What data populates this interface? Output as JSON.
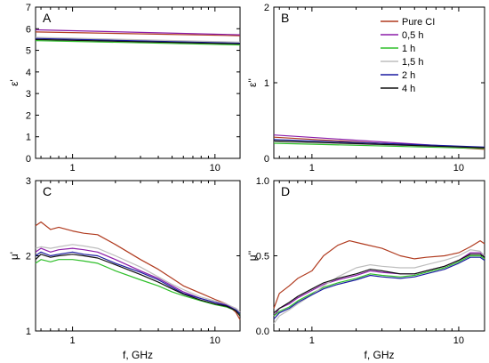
{
  "chart_data": [
    {
      "panel": "A",
      "type": "line",
      "xscale": "log",
      "xlim": [
        0.55,
        15
      ],
      "ylim": [
        0,
        7
      ],
      "yticks": [
        0,
        1,
        2,
        3,
        4,
        5,
        6,
        7
      ],
      "xticks": [
        {
          "v": 1,
          "label": "1"
        },
        {
          "v": 10,
          "label": "10"
        }
      ],
      "xlabel": "",
      "ylabel": "ε'",
      "series": [
        {
          "name": "Pure CI",
          "color": "#b03a1e",
          "x": [
            0.55,
            15
          ],
          "y": [
            5.85,
            5.68
          ]
        },
        {
          "name": "0,5 h",
          "color": "#8b1ca8",
          "x": [
            0.55,
            15
          ],
          "y": [
            5.95,
            5.72
          ]
        },
        {
          "name": "1 h",
          "color": "#2fbf2a",
          "x": [
            0.55,
            15
          ],
          "y": [
            5.45,
            5.25
          ]
        },
        {
          "name": "1,5 h",
          "color": "#bdbdbd",
          "x": [
            0.55,
            15
          ],
          "y": [
            5.6,
            5.38
          ]
        },
        {
          "name": "2 h",
          "color": "#1a1aa0",
          "x": [
            0.55,
            15
          ],
          "y": [
            5.55,
            5.33
          ]
        },
        {
          "name": "4 h",
          "color": "#101010",
          "x": [
            0.55,
            15
          ],
          "y": [
            5.5,
            5.3
          ]
        }
      ]
    },
    {
      "panel": "B",
      "type": "line",
      "xscale": "log",
      "xlim": [
        0.55,
        15
      ],
      "ylim": [
        0,
        2
      ],
      "yticks": [
        0,
        1,
        2
      ],
      "xticks": [
        {
          "v": 1,
          "label": "1"
        },
        {
          "v": 10,
          "label": "10"
        }
      ],
      "xlabel": "",
      "ylabel": "ε''",
      "series": [
        {
          "name": "Pure CI",
          "color": "#b03a1e",
          "x": [
            0.55,
            15
          ],
          "y": [
            0.28,
            0.12
          ]
        },
        {
          "name": "0,5 h",
          "color": "#8b1ca8",
          "x": [
            0.55,
            15
          ],
          "y": [
            0.31,
            0.13
          ]
        },
        {
          "name": "1 h",
          "color": "#2fbf2a",
          "x": [
            0.55,
            15
          ],
          "y": [
            0.2,
            0.13
          ]
        },
        {
          "name": "1,5 h",
          "color": "#bdbdbd",
          "x": [
            0.55,
            15
          ],
          "y": [
            0.22,
            0.14
          ]
        },
        {
          "name": "2 h",
          "color": "#1a1aa0",
          "x": [
            0.55,
            15
          ],
          "y": [
            0.25,
            0.15
          ]
        },
        {
          "name": "4 h",
          "color": "#101010",
          "x": [
            0.55,
            15
          ],
          "y": [
            0.23,
            0.14
          ]
        }
      ]
    },
    {
      "panel": "C",
      "type": "line",
      "xscale": "log",
      "xlim": [
        0.55,
        15
      ],
      "ylim": [
        1,
        3
      ],
      "yticks": [
        1,
        2,
        3
      ],
      "xticks": [
        {
          "v": 1,
          "label": "1"
        },
        {
          "v": 10,
          "label": "10"
        }
      ],
      "xlabel": "f, GHz",
      "ylabel": "μ'",
      "series": [
        {
          "name": "Pure CI",
          "color": "#b03a1e",
          "x": [
            0.55,
            0.6,
            0.7,
            0.8,
            1,
            1.2,
            1.5,
            2,
            3,
            4,
            5,
            6,
            8,
            10,
            12,
            14,
            15
          ],
          "y": [
            2.4,
            2.45,
            2.35,
            2.38,
            2.33,
            2.3,
            2.28,
            2.15,
            1.95,
            1.82,
            1.7,
            1.6,
            1.5,
            1.42,
            1.36,
            1.25,
            1.15
          ]
        },
        {
          "name": "0,5 h",
          "color": "#8b1ca8",
          "x": [
            0.55,
            0.6,
            0.7,
            0.8,
            1,
            1.2,
            1.5,
            2,
            3,
            4,
            5,
            6,
            8,
            10,
            12,
            14,
            15
          ],
          "y": [
            2.05,
            2.1,
            2.05,
            2.08,
            2.1,
            2.08,
            2.05,
            1.95,
            1.8,
            1.7,
            1.6,
            1.52,
            1.43,
            1.38,
            1.35,
            1.3,
            1.25
          ]
        },
        {
          "name": "1 h",
          "color": "#2fbf2a",
          "x": [
            0.55,
            0.6,
            0.7,
            0.8,
            1,
            1.2,
            1.5,
            2,
            3,
            4,
            5,
            6,
            8,
            10,
            12,
            14,
            15
          ],
          "y": [
            1.9,
            1.95,
            1.92,
            1.95,
            1.95,
            1.93,
            1.9,
            1.8,
            1.68,
            1.6,
            1.52,
            1.47,
            1.4,
            1.35,
            1.32,
            1.27,
            1.22
          ]
        },
        {
          "name": "1,5 h",
          "color": "#bdbdbd",
          "x": [
            0.55,
            0.6,
            0.7,
            0.8,
            1,
            1.2,
            1.5,
            2,
            3,
            4,
            5,
            6,
            8,
            10,
            12,
            14,
            15
          ],
          "y": [
            2.1,
            2.12,
            2.1,
            2.12,
            2.15,
            2.13,
            2.1,
            2.0,
            1.85,
            1.72,
            1.62,
            1.55,
            1.45,
            1.4,
            1.36,
            1.3,
            1.25
          ]
        },
        {
          "name": "2 h",
          "color": "#1a1aa0",
          "x": [
            0.55,
            0.6,
            0.7,
            0.8,
            1,
            1.2,
            1.5,
            2,
            3,
            4,
            5,
            6,
            8,
            10,
            12,
            14,
            15
          ],
          "y": [
            2.0,
            2.05,
            2.0,
            2.02,
            2.05,
            2.02,
            2.0,
            1.9,
            1.78,
            1.68,
            1.58,
            1.5,
            1.43,
            1.38,
            1.34,
            1.28,
            1.23
          ]
        },
        {
          "name": "4 h",
          "color": "#101010",
          "x": [
            0.55,
            0.6,
            0.7,
            0.8,
            1,
            1.2,
            1.5,
            2,
            3,
            4,
            5,
            6,
            8,
            10,
            12,
            14,
            15
          ],
          "y": [
            1.95,
            2.02,
            1.98,
            2.0,
            2.02,
            2.0,
            1.97,
            1.88,
            1.75,
            1.65,
            1.56,
            1.49,
            1.41,
            1.36,
            1.33,
            1.27,
            1.2
          ]
        }
      ]
    },
    {
      "panel": "D",
      "type": "line",
      "xscale": "log",
      "xlim": [
        0.55,
        15
      ],
      "ylim": [
        0,
        1
      ],
      "yticks": [
        0.0,
        0.5,
        1.0
      ],
      "ytick_labels": [
        "0.0",
        "0.5",
        "1.0"
      ],
      "xticks": [
        {
          "v": 1,
          "label": "1"
        },
        {
          "v": 10,
          "label": "10"
        }
      ],
      "xlabel": "f, GHz",
      "ylabel": "μ''",
      "series": [
        {
          "name": "Pure CI",
          "color": "#b03a1e",
          "x": [
            0.55,
            0.6,
            0.7,
            0.8,
            1,
            1.2,
            1.5,
            1.8,
            2.2,
            3,
            4,
            5,
            6,
            8,
            10,
            12,
            14,
            15
          ],
          "y": [
            0.15,
            0.25,
            0.3,
            0.35,
            0.4,
            0.5,
            0.57,
            0.6,
            0.58,
            0.55,
            0.5,
            0.48,
            0.49,
            0.5,
            0.52,
            0.56,
            0.6,
            0.58
          ]
        },
        {
          "name": "0,5 h",
          "color": "#8b1ca8",
          "x": [
            0.55,
            0.6,
            0.7,
            0.8,
            1,
            1.2,
            1.5,
            2,
            2.5,
            3,
            4,
            5,
            6,
            8,
            10,
            12,
            14,
            15
          ],
          "y": [
            0.1,
            0.15,
            0.18,
            0.22,
            0.27,
            0.31,
            0.34,
            0.37,
            0.4,
            0.39,
            0.38,
            0.38,
            0.4,
            0.43,
            0.47,
            0.52,
            0.52,
            0.5
          ]
        },
        {
          "name": "1 h",
          "color": "#2fbf2a",
          "x": [
            0.55,
            0.6,
            0.7,
            0.8,
            1,
            1.2,
            1.5,
            2,
            2.5,
            3,
            4,
            5,
            6,
            8,
            10,
            12,
            14,
            15
          ],
          "y": [
            0.1,
            0.13,
            0.16,
            0.2,
            0.25,
            0.29,
            0.32,
            0.35,
            0.38,
            0.37,
            0.36,
            0.37,
            0.39,
            0.42,
            0.46,
            0.5,
            0.5,
            0.48
          ]
        },
        {
          "name": "1,5 h",
          "color": "#bdbdbd",
          "x": [
            0.55,
            0.6,
            0.7,
            0.8,
            1,
            1.2,
            1.5,
            2,
            2.5,
            3,
            4,
            5,
            6,
            8,
            10,
            12,
            14,
            15
          ],
          "y": [
            0.05,
            0.1,
            0.14,
            0.18,
            0.24,
            0.3,
            0.36,
            0.42,
            0.44,
            0.43,
            0.42,
            0.42,
            0.44,
            0.47,
            0.5,
            0.54,
            0.53,
            0.5
          ]
        },
        {
          "name": "2 h",
          "color": "#1a1aa0",
          "x": [
            0.55,
            0.6,
            0.7,
            0.8,
            1,
            1.2,
            1.5,
            2,
            2.5,
            3,
            4,
            5,
            6,
            8,
            10,
            12,
            14,
            15
          ],
          "y": [
            0.08,
            0.12,
            0.15,
            0.19,
            0.24,
            0.28,
            0.31,
            0.34,
            0.37,
            0.36,
            0.35,
            0.36,
            0.38,
            0.41,
            0.45,
            0.49,
            0.49,
            0.47
          ]
        },
        {
          "name": "4 h",
          "color": "#101010",
          "x": [
            0.55,
            0.6,
            0.7,
            0.8,
            1,
            1.2,
            1.5,
            2,
            2.5,
            3,
            4,
            5,
            6,
            8,
            10,
            12,
            14,
            15
          ],
          "y": [
            0.12,
            0.15,
            0.19,
            0.23,
            0.28,
            0.32,
            0.35,
            0.38,
            0.41,
            0.4,
            0.38,
            0.38,
            0.4,
            0.43,
            0.47,
            0.51,
            0.51,
            0.49
          ]
        }
      ]
    }
  ],
  "legend": {
    "position": "top-right of panel B",
    "entries": [
      {
        "name": "Pure CI",
        "color": "#b03a1e"
      },
      {
        "name": "0,5 h",
        "color": "#8b1ca8"
      },
      {
        "name": "1 h",
        "color": "#2fbf2a"
      },
      {
        "name": "1,5 h",
        "color": "#bdbdbd"
      },
      {
        "name": "2 h",
        "color": "#1a1aa0"
      },
      {
        "name": "4 h",
        "color": "#101010"
      }
    ]
  }
}
